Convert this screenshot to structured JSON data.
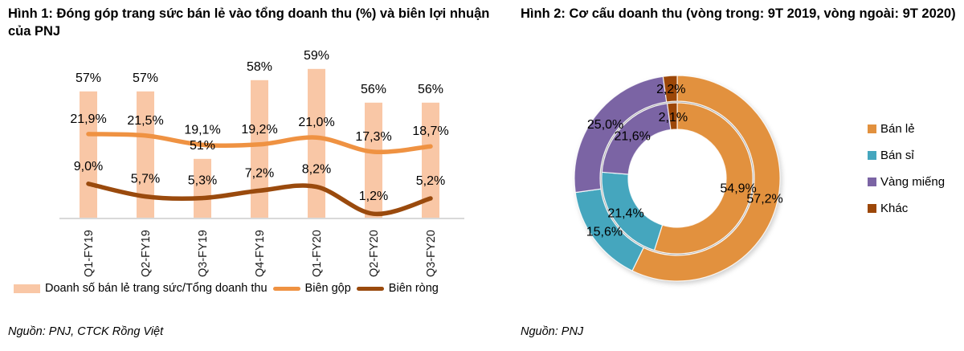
{
  "figure1": {
    "title": "Hình 1: Đóng góp trang sức bán lẻ vào tổng doanh thu (%) và biên lợi nhuận của PNJ",
    "source": "Nguồn: PNJ, CTCK Rồng Việt"
  },
  "figure2": {
    "title": "Hình 2: Cơ cấu doanh thu (vòng trong: 9T 2019, vòng ngoài: 9T 2020)",
    "source": "Nguồn: PNJ"
  },
  "chart_data": [
    {
      "type": "bar",
      "subtype": "bar-line-combo",
      "title": "Hình 1: Đóng góp trang sức bán lẻ vào tổng doanh thu (%) và biên lợi nhuận của PNJ",
      "categories": [
        "Q1-FY19",
        "Q2-FY19",
        "Q3-FY19",
        "Q4-FY19",
        "Q1-FY20",
        "Q2-FY20",
        "Q3-FY20"
      ],
      "series": [
        {
          "name": "Doanh số bán lẻ trang sức/Tổng doanh thu",
          "kind": "bar",
          "color": "#F9C7A6",
          "unit": "%",
          "values": [
            57,
            57,
            51,
            58,
            59,
            56,
            56
          ],
          "labels": [
            "57%",
            "57%",
            "51%",
            "58%",
            "59%",
            "56%",
            "56%"
          ]
        },
        {
          "name": "Biên gộp",
          "kind": "line",
          "color": "#EF9242",
          "unit": "%",
          "values": [
            21.9,
            21.5,
            19.1,
            19.2,
            21.0,
            17.3,
            18.7
          ],
          "labels": [
            "21,9%",
            "21,5%",
            "19,1%",
            "19,2%",
            "21,0%",
            "17,3%",
            "18,7%"
          ]
        },
        {
          "name": "Biên ròng",
          "kind": "line",
          "color": "#9A4A0D",
          "unit": "%",
          "values": [
            9.0,
            5.7,
            5.3,
            7.2,
            8.2,
            1.2,
            5.2
          ],
          "labels": [
            "9,0%",
            "5,7%",
            "5,3%",
            "7,2%",
            "8,2%",
            "1,2%",
            "5,2%"
          ]
        }
      ],
      "xlabel": "",
      "ylabel": "",
      "grid": false,
      "legend_position": "bottom",
      "x_tick_rotation": -90
    },
    {
      "type": "pie",
      "subtype": "nested-donut",
      "title": "Hình 2: Cơ cấu doanh thu (vòng trong: 9T 2019, vòng ngoài: 9T 2020)",
      "categories": [
        "Bán lẻ",
        "Bán sỉ",
        "Vàng miếng",
        "Khác"
      ],
      "colors": [
        "#E2913E",
        "#45A6BE",
        "#7B64A4",
        "#9C4708"
      ],
      "series": [
        {
          "name": "9T 2019",
          "ring": "inner",
          "unit": "%",
          "values": [
            54.9,
            21.4,
            21.6,
            2.1
          ],
          "labels": [
            "54,9%",
            "21,4%",
            "21,6%",
            "2,1%"
          ]
        },
        {
          "name": "9T 2020",
          "ring": "outer",
          "unit": "%",
          "values": [
            57.2,
            15.6,
            25.0,
            2.2
          ],
          "labels": [
            "57,2%",
            "15,6%",
            "25,0%",
            "2,2%"
          ]
        }
      ],
      "legend_position": "right",
      "start_angle_deg": 0,
      "direction": "clockwise"
    }
  ]
}
